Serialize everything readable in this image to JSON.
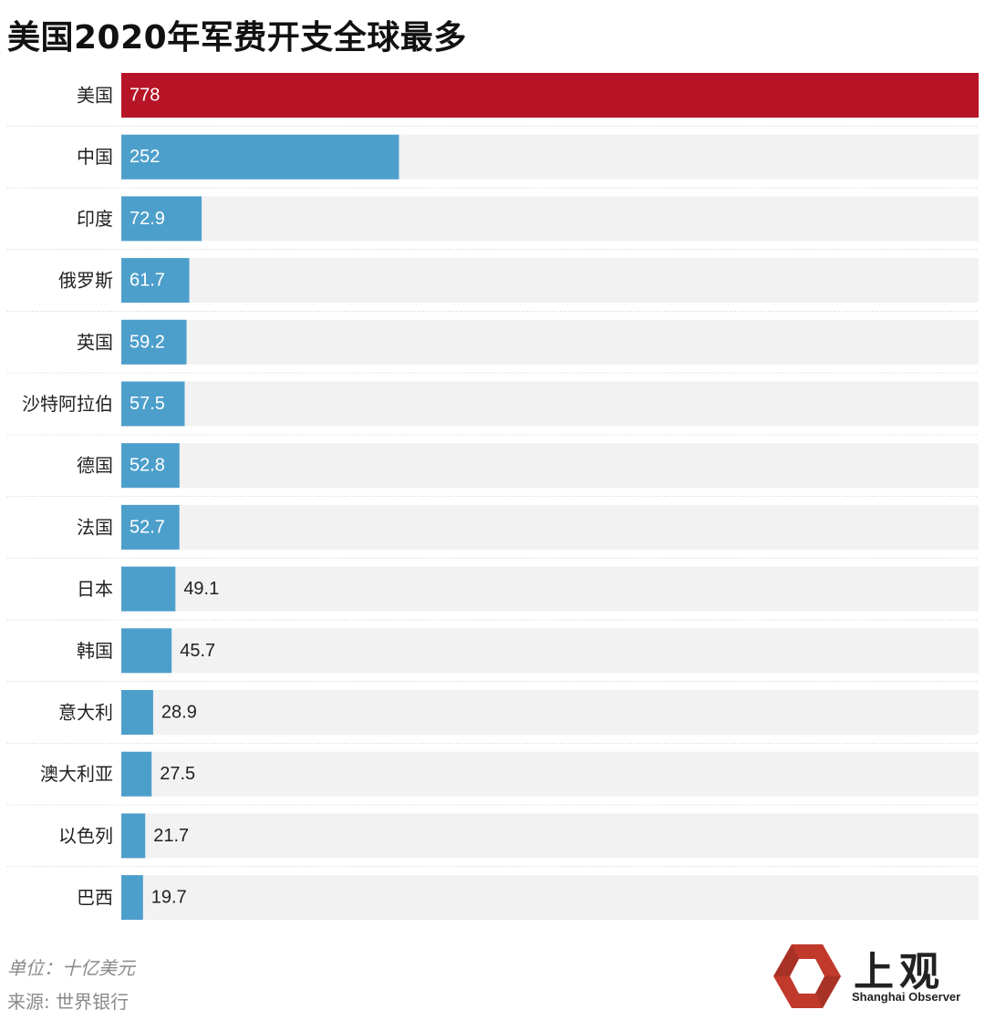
{
  "colors": {
    "highlight": "#b71427",
    "bar": "#4d9fcb",
    "track": "#f2f2f2",
    "logo_red": "#c0392b"
  },
  "chart_data": {
    "type": "bar",
    "orientation": "horizontal",
    "title": "美国2020年军费开支全球最多",
    "categories": [
      "美国",
      "中国",
      "印度",
      "俄罗斯",
      "英国",
      "沙特阿拉伯",
      "德国",
      "法国",
      "日本",
      "韩国",
      "意大利",
      "澳大利亚",
      "以色列",
      "巴西"
    ],
    "values": [
      778,
      252,
      72.9,
      61.7,
      59.2,
      57.5,
      52.8,
      52.7,
      49.1,
      45.7,
      28.9,
      27.5,
      21.7,
      19.7
    ],
    "value_labels": [
      "778",
      "252",
      "72.9",
      "61.7",
      "59.2",
      "57.5",
      "52.8",
      "52.7",
      "49.1",
      "45.7",
      "28.9",
      "27.5",
      "21.7",
      "19.7"
    ],
    "highlight_index": 0,
    "xlim": [
      0,
      778
    ],
    "grid": false,
    "unit_note": "单位：十亿美元",
    "source": "来源: 世界银行"
  },
  "logo": {
    "text": "上观",
    "subtext": "Shanghai Observer",
    "icon": "hexagon-logo-icon"
  }
}
